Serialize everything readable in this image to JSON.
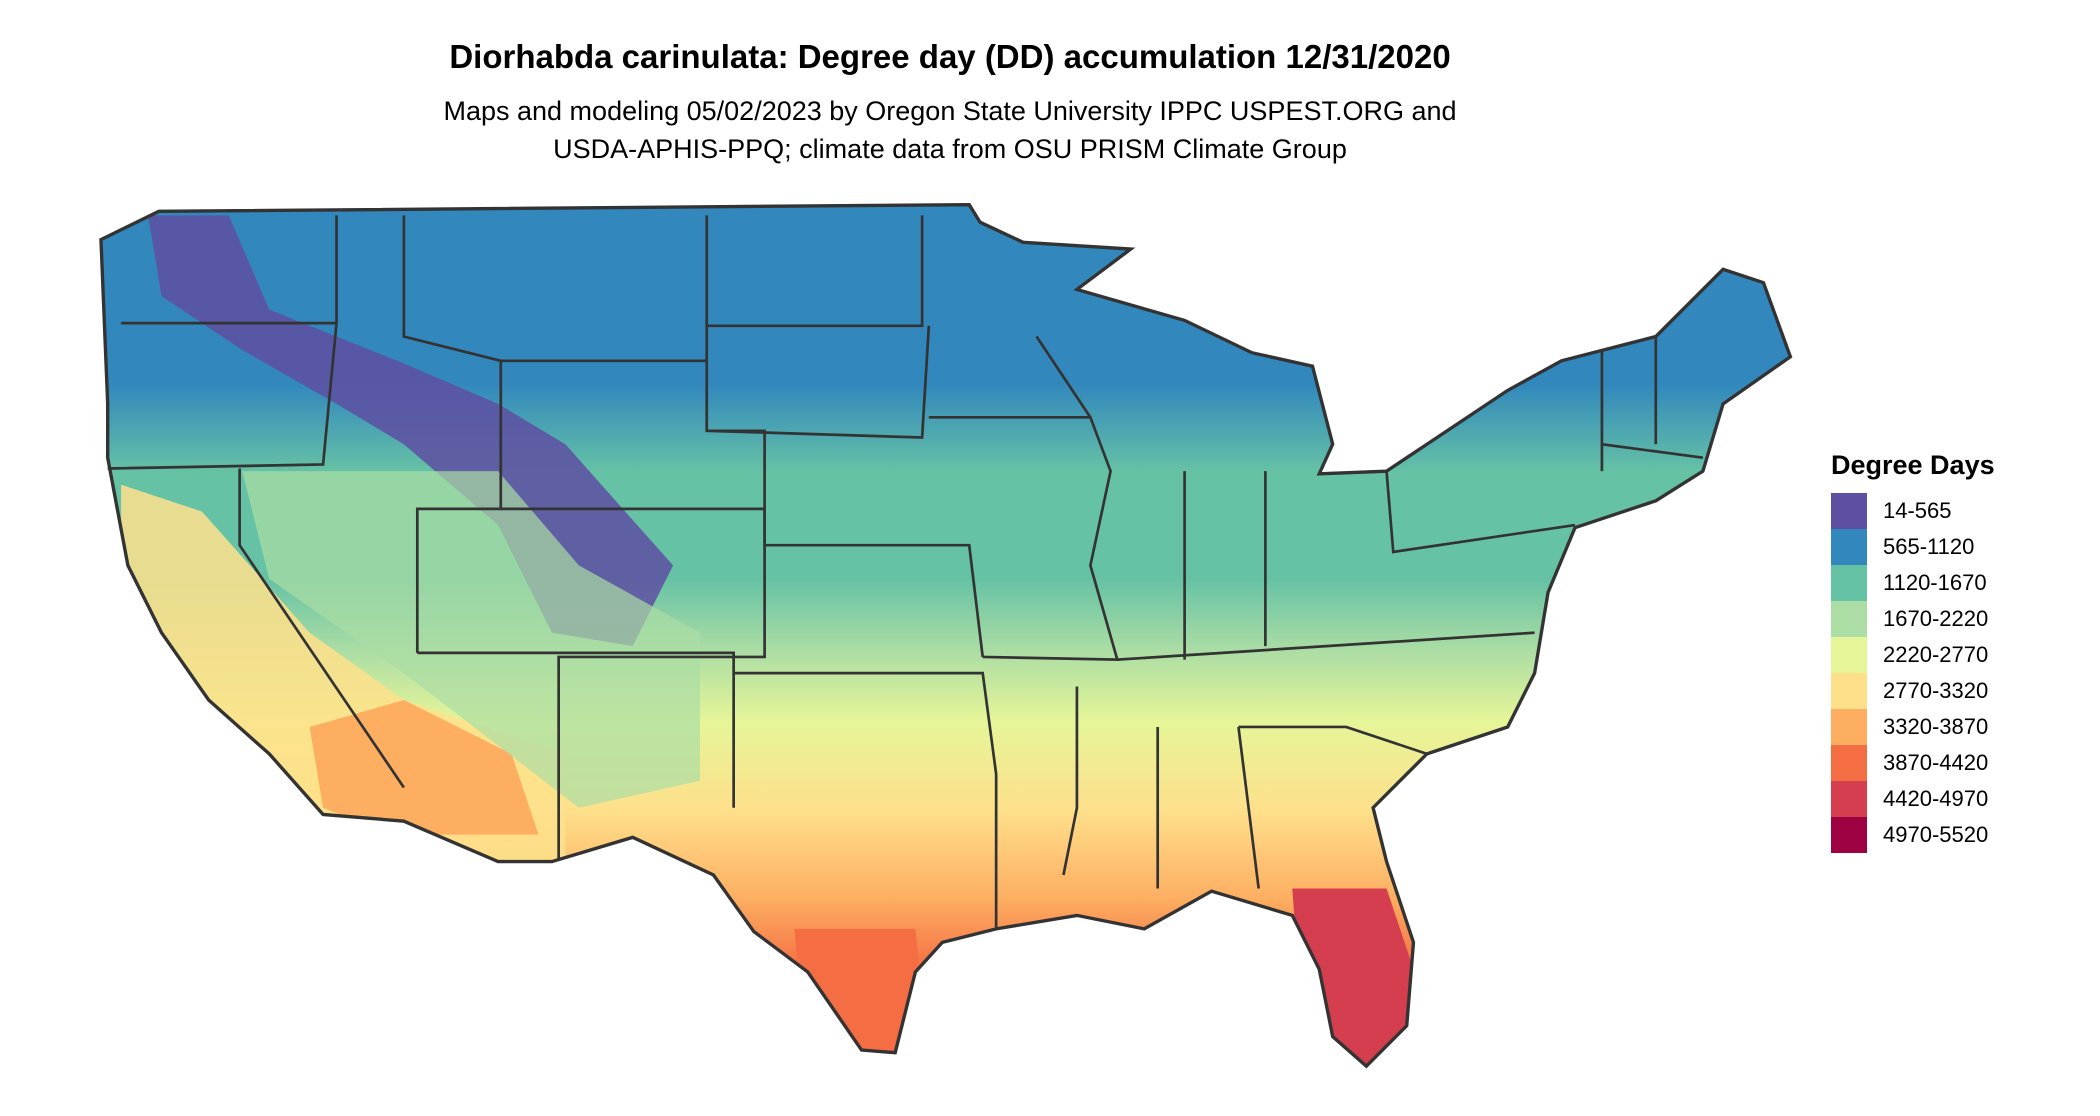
{
  "title": "Diorhabda carinulata: Degree day (DD) accumulation 12/31/2020",
  "subtitle_lines": [
    "Maps and modeling 05/02/2023 by Oregon State University IPPC USPEST.ORG and",
    "USDA-APHIS-PPQ; climate data from OSU PRISM Climate Group"
  ],
  "legend": {
    "title": "Degree Days",
    "items": [
      {
        "label": "14-565",
        "color": "#5E4FA2"
      },
      {
        "label": "565-1120",
        "color": "#3288BD"
      },
      {
        "label": "1120-1670",
        "color": "#66C2A5"
      },
      {
        "label": "1670-2220",
        "color": "#ABDDA4"
      },
      {
        "label": "2220-2770",
        "color": "#E6F598"
      },
      {
        "label": "2770-3320",
        "color": "#FEE08B"
      },
      {
        "label": "3320-3870",
        "color": "#FDAE61"
      },
      {
        "label": "3870-4420",
        "color": "#F46D43"
      },
      {
        "label": "4420-4970",
        "color": "#D53E4F"
      },
      {
        "label": "4970-5520",
        "color": "#9E0142"
      }
    ]
  },
  "map": {
    "region": "Contiguous United States",
    "border_color": "#333333"
  }
}
